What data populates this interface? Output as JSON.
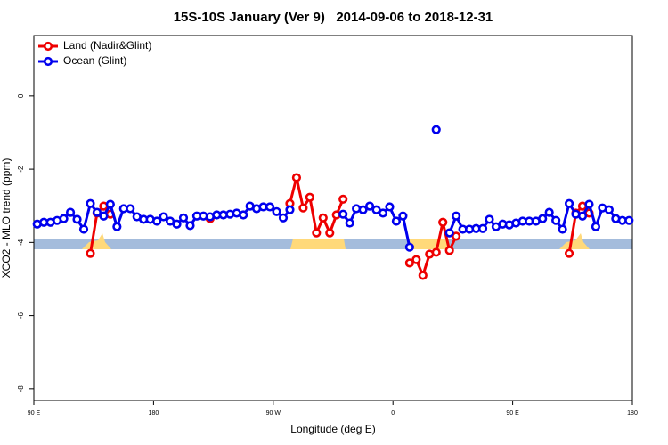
{
  "chart_data": {
    "type": "line",
    "title": "15S-10S January (Ver 9)   2014-09-06 to 2018-12-31",
    "xlabel": "Longitude (deg E)",
    "ylabel": "XCO2 - MLO trend (ppm)",
    "xlim": [
      90,
      540
    ],
    "ylim": [
      -8.32,
      1.65
    ],
    "xticks": [
      {
        "value": 90,
        "label": "90 E"
      },
      180,
      {
        "value": 270,
        "label": "90 W"
      },
      {
        "value": 360,
        "label": "0"
      },
      {
        "value": 450,
        "label": "90 E"
      },
      {
        "value": 540,
        "label": "180"
      }
    ],
    "yticks": [
      0,
      -2,
      -4,
      -6,
      -8
    ],
    "legend": "top-left",
    "x": [
      92.5,
      97.5,
      102.5,
      107.5,
      112.5,
      117.5,
      122.5,
      127.5,
      132.5,
      137.5,
      142.5,
      147.5,
      152.5,
      157.5,
      162.5,
      167.5,
      172.5,
      177.5,
      182.5,
      187.5,
      192.5,
      197.5,
      202.5,
      207.5,
      212.5,
      217.5,
      222.5,
      227.5,
      232.5,
      237.5,
      242.5,
      247.5,
      252.5,
      257.5,
      262.5,
      267.5,
      272.5,
      277.5,
      282.5,
      287.5,
      292.5,
      297.5,
      302.5,
      307.5,
      312.5,
      317.5,
      322.5,
      327.5,
      332.5,
      337.5,
      342.5,
      347.5,
      352.5,
      357.5,
      362.5,
      367.5,
      372.5,
      377.5,
      382.5,
      387.5,
      392.5,
      397.5,
      402.5,
      407.5,
      412.5,
      417.5,
      422.5,
      427.5,
      432.5,
      437.5,
      442.5,
      447.5,
      452.5,
      457.5,
      462.5,
      467.5,
      472.5,
      477.5,
      482.5,
      487.5,
      492.5,
      497.5,
      502.5,
      507.5,
      512.5,
      517.5,
      522.5,
      527.5,
      532.5,
      537.5
    ],
    "series": [
      {
        "name": "Land (Nadir&Glint)",
        "color": "#ee0000",
        "values": [
          null,
          null,
          null,
          null,
          null,
          null,
          null,
          null,
          -4.3,
          -3.2,
          -3.01,
          -3.23,
          null,
          null,
          null,
          null,
          null,
          null,
          null,
          null,
          null,
          null,
          null,
          null,
          null,
          null,
          -3.35,
          null,
          null,
          null,
          null,
          null,
          null,
          null,
          null,
          null,
          null,
          null,
          -2.94,
          -2.23,
          -3.06,
          -2.77,
          -3.74,
          -3.33,
          -3.74,
          -3.25,
          -2.82,
          null,
          null,
          null,
          null,
          null,
          null,
          null,
          null,
          null,
          -4.56,
          -4.47,
          -4.9,
          -4.32,
          -4.27,
          -3.45,
          -4.22,
          -3.83,
          null,
          null,
          null,
          null,
          null,
          null,
          null,
          null,
          null,
          null,
          null,
          null,
          null,
          null,
          null,
          null,
          -4.3,
          -3.2,
          -3.01,
          -3.2,
          null,
          null,
          null,
          null,
          null,
          null
        ]
      },
      {
        "name": "Ocean (Glint)",
        "color": "#0000ee",
        "values": [
          -3.5,
          -3.45,
          -3.45,
          -3.4,
          -3.35,
          -3.18,
          -3.37,
          -3.64,
          -2.94,
          -3.18,
          -3.28,
          -2.96,
          -3.57,
          -3.08,
          -3.08,
          -3.3,
          -3.37,
          -3.37,
          -3.42,
          -3.3,
          -3.42,
          -3.5,
          -3.33,
          -3.54,
          -3.28,
          -3.28,
          -3.3,
          -3.25,
          -3.25,
          -3.23,
          -3.2,
          -3.25,
          -3.01,
          -3.08,
          -3.03,
          -3.03,
          -3.16,
          -3.33,
          -3.11,
          null,
          null,
          null,
          null,
          null,
          null,
          null,
          -3.23,
          -3.47,
          -3.08,
          -3.11,
          -3.01,
          -3.11,
          -3.2,
          -3.03,
          -3.42,
          -3.28,
          -4.13,
          null,
          null,
          null,
          -0.92,
          null,
          -3.74,
          -3.28,
          -3.64,
          -3.64,
          -3.62,
          -3.62,
          -3.37,
          -3.57,
          -3.5,
          -3.52,
          -3.47,
          -3.42,
          -3.42,
          -3.42,
          -3.35,
          -3.18,
          -3.4,
          -3.64,
          -2.94,
          -3.23,
          -3.28,
          -2.96,
          -3.57,
          -3.06,
          -3.11,
          -3.35,
          -3.4,
          -3.4
        ]
      }
    ]
  }
}
